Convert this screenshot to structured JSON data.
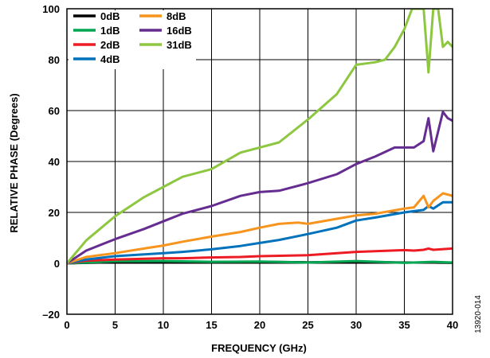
{
  "chart_data": {
    "type": "line",
    "xlabel": "FREQUENCY (GHz)",
    "ylabel": "RELATIVE PHASE (Degrees)",
    "xlim": [
      0,
      40
    ],
    "ylim": [
      -20,
      100
    ],
    "xticks": [
      0,
      5,
      10,
      15,
      20,
      25,
      30,
      35,
      40
    ],
    "yticks": [
      -20,
      0,
      20,
      40,
      60,
      80,
      100
    ],
    "xtick_labels": [
      "0",
      "5",
      "10",
      "15",
      "20",
      "25",
      "30",
      "35",
      "40"
    ],
    "ytick_labels": [
      "–20",
      "0",
      "20",
      "40",
      "60",
      "80",
      "100"
    ],
    "grid": true,
    "legend_position": "top-left",
    "figure_id": "13920-014",
    "series": [
      {
        "name": "0dB",
        "color": "#000000",
        "x": [
          0,
          5,
          10,
          15,
          20,
          25,
          30,
          35,
          38,
          40
        ],
        "y": [
          0,
          0.5,
          0.6,
          0.5,
          0.6,
          0.4,
          0.6,
          0.3,
          0.3,
          0.2
        ]
      },
      {
        "name": "1dB",
        "color": "#00a651",
        "x": [
          0,
          5,
          10,
          15,
          20,
          25,
          30,
          35,
          38,
          40
        ],
        "y": [
          0,
          0.8,
          0.9,
          0.6,
          0.7,
          0.3,
          0.9,
          0.2,
          0.6,
          0.3
        ]
      },
      {
        "name": "2dB",
        "color": "#ed1c24",
        "x": [
          0,
          2,
          5,
          8,
          10,
          12,
          15,
          18,
          20,
          25,
          30,
          35,
          36,
          37,
          37.5,
          38,
          40
        ],
        "y": [
          0,
          1.0,
          1.5,
          1.8,
          2.0,
          2.0,
          2.3,
          2.5,
          2.8,
          3.2,
          4.5,
          5.2,
          5.0,
          5.3,
          5.8,
          5.3,
          5.8
        ]
      },
      {
        "name": "4dB",
        "color": "#0072bc",
        "x": [
          0,
          2,
          5,
          8,
          10,
          12,
          15,
          18,
          20,
          22,
          25,
          28,
          30,
          32,
          35,
          36,
          37,
          37.5,
          38,
          39,
          40
        ],
        "y": [
          0,
          1.5,
          2.8,
          3.5,
          4.0,
          4.5,
          5.5,
          6.8,
          8.0,
          9.2,
          11.5,
          14.0,
          16.8,
          18.0,
          20.0,
          20.5,
          21.0,
          22.5,
          21.5,
          24.0,
          24.0
        ]
      },
      {
        "name": "8dB",
        "color": "#f7941d",
        "x": [
          0,
          2,
          5,
          8,
          10,
          12,
          15,
          18,
          20,
          22,
          24,
          25,
          28,
          30,
          32,
          35,
          36,
          37,
          37.5,
          38,
          39,
          40
        ],
        "y": [
          0,
          2.5,
          4.0,
          5.8,
          7.0,
          8.5,
          10.5,
          12.3,
          14.0,
          15.5,
          16.0,
          15.5,
          17.5,
          18.8,
          19.5,
          21.5,
          22.0,
          26.5,
          22.0,
          24.5,
          27.5,
          26.5
        ]
      },
      {
        "name": "16dB",
        "color": "#662d91",
        "x": [
          0,
          2,
          5,
          8,
          10,
          12,
          15,
          18,
          20,
          22,
          25,
          28,
          30,
          32,
          34,
          35,
          36,
          37,
          37.5,
          38,
          39,
          39.5,
          40
        ],
        "y": [
          0,
          5.0,
          9.5,
          13.5,
          16.5,
          19.5,
          22.5,
          26.5,
          28.0,
          28.5,
          31.5,
          35.0,
          39.0,
          42.0,
          45.5,
          45.5,
          45.5,
          48.0,
          57.0,
          44.0,
          59.5,
          57.0,
          56.0
        ]
      },
      {
        "name": "31dB",
        "color": "#8dc63f",
        "x": [
          0,
          2,
          5,
          8,
          10,
          12,
          15,
          18,
          20,
          22,
          25,
          28,
          30,
          31,
          32,
          33,
          34,
          35,
          35.8,
          36.5,
          37,
          37.5,
          38,
          38.5,
          39,
          39.5,
          40
        ],
        "y": [
          0,
          9.0,
          18.5,
          26.0,
          30.0,
          34.0,
          37.0,
          43.5,
          45.5,
          47.5,
          56.5,
          66.5,
          78.0,
          78.5,
          79.0,
          80.0,
          85.0,
          92.0,
          100,
          100,
          100,
          75,
          100,
          100,
          85,
          87,
          85
        ]
      }
    ]
  }
}
